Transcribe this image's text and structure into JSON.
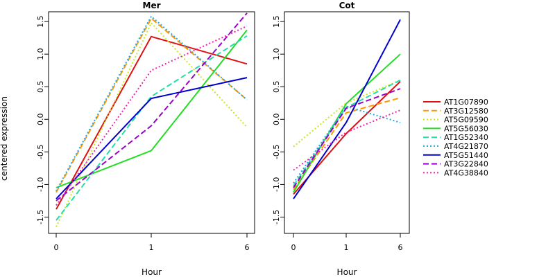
{
  "ylabel": "centered expression",
  "xlabel": "Hour",
  "legend": {
    "placement": "right",
    "entries": [
      "AT1G07890",
      "AT3G12580",
      "AT5G09590",
      "AT5G56030",
      "AT1G52340",
      "AT4G21870",
      "AT5G51440",
      "AT3G22840",
      "AT4G38840"
    ]
  },
  "colors": {
    "AT1G07890": "#dd1111",
    "AT3G12580": "#ff9900",
    "AT5G09590": "#c8e81a",
    "AT5G56030": "#22dd22",
    "AT1G52340": "#22ddaa",
    "AT4G21870": "#22aadd",
    "AT5G51440": "#0000cc",
    "AT3G22840": "#9900cc",
    "AT4G38840": "#ee22aa"
  },
  "chart_data": [
    {
      "type": "line",
      "title": "Mer",
      "xlabel": "Hour",
      "ylabel": "centered expression",
      "categories": [
        "0",
        "1",
        "6"
      ],
      "ylim": [
        -1.75,
        1.65
      ],
      "yticks": [
        -1.5,
        -1.0,
        -0.5,
        0.0,
        0.5,
        1.0,
        1.5
      ],
      "series": [
        {
          "name": "AT1G07890",
          "style": "solid",
          "values": [
            -1.38,
            1.27,
            0.85
          ]
        },
        {
          "name": "AT3G12580",
          "style": "dashed",
          "values": [
            -1.12,
            1.55,
            0.3
          ]
        },
        {
          "name": "AT5G09590",
          "style": "dotted",
          "values": [
            -1.65,
            1.48,
            -0.12
          ]
        },
        {
          "name": "AT5G56030",
          "style": "solid",
          "values": [
            -1.05,
            -0.48,
            1.37
          ]
        },
        {
          "name": "AT1G52340",
          "style": "dashed",
          "values": [
            -1.55,
            0.35,
            1.28
          ]
        },
        {
          "name": "AT4G21870",
          "style": "dotted",
          "values": [
            -1.1,
            1.58,
            0.3
          ]
        },
        {
          "name": "AT5G51440",
          "style": "solid",
          "values": [
            -1.22,
            0.32,
            0.64
          ]
        },
        {
          "name": "AT3G22840",
          "style": "dashed",
          "values": [
            -1.25,
            -0.1,
            1.63
          ]
        },
        {
          "name": "AT4G38840",
          "style": "dotted",
          "values": [
            -1.32,
            0.75,
            1.43
          ]
        }
      ]
    },
    {
      "type": "line",
      "title": "Cot",
      "xlabel": "Hour",
      "ylabel": "",
      "categories": [
        "0",
        "1",
        "6"
      ],
      "ylim": [
        -1.75,
        1.65
      ],
      "yticks": [
        -1.5,
        -1.0,
        -0.5,
        0.0,
        0.5,
        1.0,
        1.5
      ],
      "series": [
        {
          "name": "AT1G07890",
          "style": "solid",
          "values": [
            -1.15,
            -0.22,
            0.58
          ]
        },
        {
          "name": "AT3G12580",
          "style": "dashed",
          "values": [
            -1.08,
            0.1,
            0.33
          ]
        },
        {
          "name": "AT5G09590",
          "style": "dotted",
          "values": [
            -0.42,
            0.25,
            0.6
          ]
        },
        {
          "name": "AT5G56030",
          "style": "solid",
          "values": [
            -1.12,
            0.24,
            1.0
          ]
        },
        {
          "name": "AT1G52340",
          "style": "dashed",
          "values": [
            -1.02,
            0.18,
            0.6
          ]
        },
        {
          "name": "AT4G21870",
          "style": "dotted",
          "values": [
            -0.98,
            0.2,
            -0.05
          ]
        },
        {
          "name": "AT5G51440",
          "style": "solid",
          "values": [
            -1.22,
            -0.05,
            1.53
          ]
        },
        {
          "name": "AT3G22840",
          "style": "dashed",
          "values": [
            -1.05,
            0.17,
            0.47
          ]
        },
        {
          "name": "AT4G38840",
          "style": "dotted",
          "values": [
            -0.78,
            -0.2,
            0.14
          ]
        }
      ]
    }
  ]
}
